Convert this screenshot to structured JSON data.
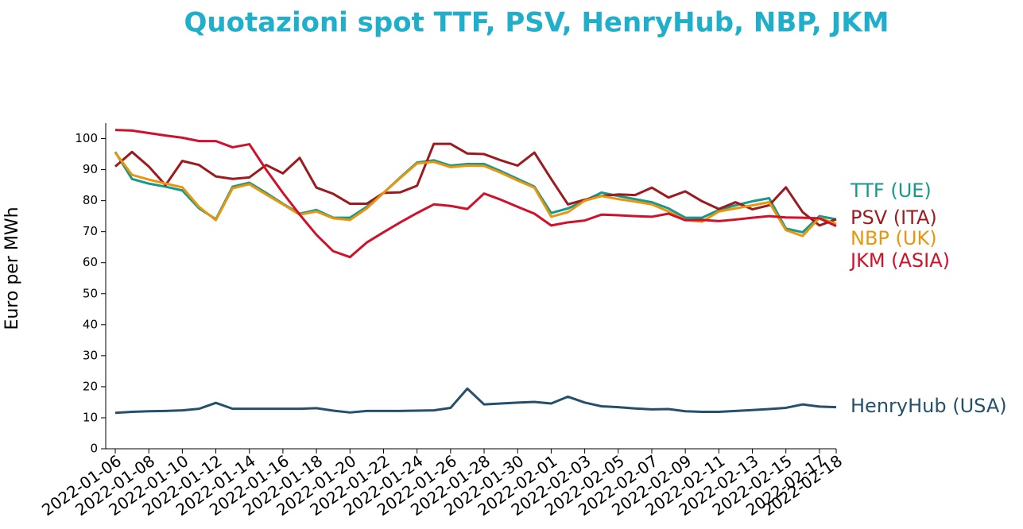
{
  "chart_data": {
    "type": "line",
    "title": "Quotazioni spot TTF, PSV, HenryHub, NBP, JKM",
    "y_label": "Euro per MWh",
    "x": [
      "2022-01-06",
      "2022-01-07",
      "2022-01-08",
      "2022-01-09",
      "2022-01-10",
      "2022-01-11",
      "2022-01-12",
      "2022-01-13",
      "2022-01-14",
      "2022-01-15",
      "2022-01-16",
      "2022-01-17",
      "2022-01-18",
      "2022-01-19",
      "2022-01-20",
      "2022-01-21",
      "2022-01-22",
      "2022-01-23",
      "2022-01-24",
      "2022-01-25",
      "2022-01-26",
      "2022-01-27",
      "2022-01-28",
      "2022-01-29",
      "2022-01-30",
      "2022-01-31",
      "2022-02-01",
      "2022-02-02",
      "2022-02-03",
      "2022-02-04",
      "2022-02-05",
      "2022-02-06",
      "2022-02-07",
      "2022-02-08",
      "2022-02-09",
      "2022-02-10",
      "2022-02-11",
      "2022-02-12",
      "2022-02-13",
      "2022-02-14",
      "2022-02-15",
      "2022-02-16",
      "2022-02-17",
      "2022-02-18"
    ],
    "series": [
      {
        "name": "TTF (UE)",
        "color": "#17998a",
        "values": [
          95.7,
          87,
          85.5,
          84.5,
          83.3,
          77.5,
          74,
          84.5,
          85.8,
          82.5,
          79,
          75.8,
          77,
          74.5,
          74.5,
          78,
          82.5,
          87.5,
          92.3,
          93,
          91.3,
          91.8,
          91.8,
          89.5,
          87,
          84.5,
          76,
          77.5,
          80,
          82.6,
          81.5,
          80.5,
          79.5,
          77.5,
          74.5,
          74.5,
          77,
          78.5,
          79.8,
          80.8,
          71,
          69.8,
          75,
          74
        ]
      },
      {
        "name": "PSV (ITA)",
        "color": "#9b1b1e",
        "values": [
          91,
          95.7,
          91,
          85,
          92.8,
          91.5,
          87.8,
          87,
          87.5,
          91.5,
          88.8,
          93.8,
          84.2,
          82.2,
          79,
          79,
          82.5,
          82.7,
          84.8,
          98.3,
          98.3,
          95.2,
          95,
          93,
          91.3,
          95.5,
          87,
          78.8,
          80.3,
          81.5,
          82,
          81.8,
          84.2,
          81,
          83,
          79.8,
          77.3,
          79.5,
          77.2,
          78.5,
          84.3,
          76.3,
          72,
          74
        ]
      },
      {
        "name": "NBP (UK)",
        "color": "#e8960e",
        "values": [
          95.5,
          88.3,
          86.8,
          85.5,
          84.3,
          78,
          73.7,
          84,
          85.3,
          82,
          78.8,
          75.5,
          76.5,
          74.3,
          73.8,
          77.5,
          82.5,
          87.3,
          92,
          92.5,
          90.8,
          91.3,
          91.2,
          89,
          86.5,
          84.2,
          74.8,
          76.3,
          80,
          81.5,
          80.5,
          79.7,
          78.8,
          76.5,
          73.8,
          73.2,
          76.5,
          77.5,
          78.5,
          79.5,
          70.5,
          68.6,
          74.5,
          72.5
        ]
      },
      {
        "name": "JKM (ASIA)",
        "color": "#d0112b",
        "values": [
          102.8,
          102.6,
          101.8,
          101,
          100.3,
          99.2,
          99.2,
          97.2,
          98.2,
          90,
          82.5,
          75.5,
          69,
          63.7,
          61.8,
          66.5,
          69.8,
          73,
          76,
          78.8,
          78.3,
          77.3,
          82.3,
          80.3,
          78,
          75.8,
          72,
          73,
          73.6,
          75.5,
          75.3,
          75,
          74.8,
          75.8,
          73.7,
          73.8,
          73.4,
          73.9,
          74.5,
          75,
          74.6,
          74.5,
          74.3,
          71.8
        ]
      },
      {
        "name": "HenryHub (USA)",
        "color": "#24506b",
        "values": [
          11.6,
          11.9,
          12.1,
          12.2,
          12.4,
          12.9,
          14.8,
          12.9,
          12.9,
          12.9,
          12.9,
          12.9,
          13.1,
          12.3,
          11.7,
          12.2,
          12.2,
          12.2,
          12.3,
          12.4,
          13.2,
          19.4,
          14.3,
          14.6,
          14.9,
          15.1,
          14.6,
          16.8,
          14.9,
          13.7,
          13.4,
          13,
          12.7,
          12.8,
          12.1,
          11.9,
          11.9,
          12.2,
          12.5,
          12.8,
          13.2,
          14.3,
          13.6,
          13.4
        ]
      }
    ],
    "xlim": [
      "2022-01-06",
      "2022-02-18"
    ],
    "xticks": [
      "2022-01-06",
      "2022-01-08",
      "2022-01-10",
      "2022-01-12",
      "2022-01-14",
      "2022-01-16",
      "2022-01-18",
      "2022-01-20",
      "2022-01-22",
      "2022-01-24",
      "2022-01-26",
      "2022-01-28",
      "2022-01-30",
      "2022-02-01",
      "2022-02-03",
      "2022-02-05",
      "2022-02-07",
      "2022-02-09",
      "2022-02-11",
      "2022-02-13",
      "2022-02-15",
      "2022-02-17",
      "2022-02-18"
    ],
    "ylim": [
      0,
      105
    ],
    "yticks": [
      0,
      10,
      20,
      30,
      40,
      50,
      60,
      70,
      80,
      90,
      100
    ],
    "grid": false
  }
}
